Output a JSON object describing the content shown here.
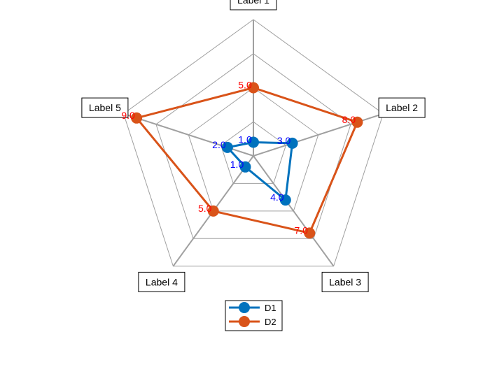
{
  "chart_data": {
    "type": "radar",
    "axes": [
      "Label 1",
      "Label 2",
      "Label 3",
      "Label 4",
      "Label 5"
    ],
    "rlim": [
      0,
      10
    ],
    "rings": 4,
    "grid": true,
    "legend_position": "bottom",
    "series": [
      {
        "name": "D1",
        "values": [
          1,
          3,
          4,
          1,
          2
        ],
        "value_labels": [
          "1.0",
          "3.0",
          "4.0",
          "1.0",
          "2.0"
        ],
        "color": "#0072BD",
        "label_color": "#0000FF"
      },
      {
        "name": "D2",
        "values": [
          5,
          8,
          7,
          5,
          9
        ],
        "value_labels": [
          "5.0",
          "8.0",
          "7.0",
          "5.0",
          "9.0"
        ],
        "color": "#D95319",
        "label_color": "#FF0000"
      }
    ]
  }
}
